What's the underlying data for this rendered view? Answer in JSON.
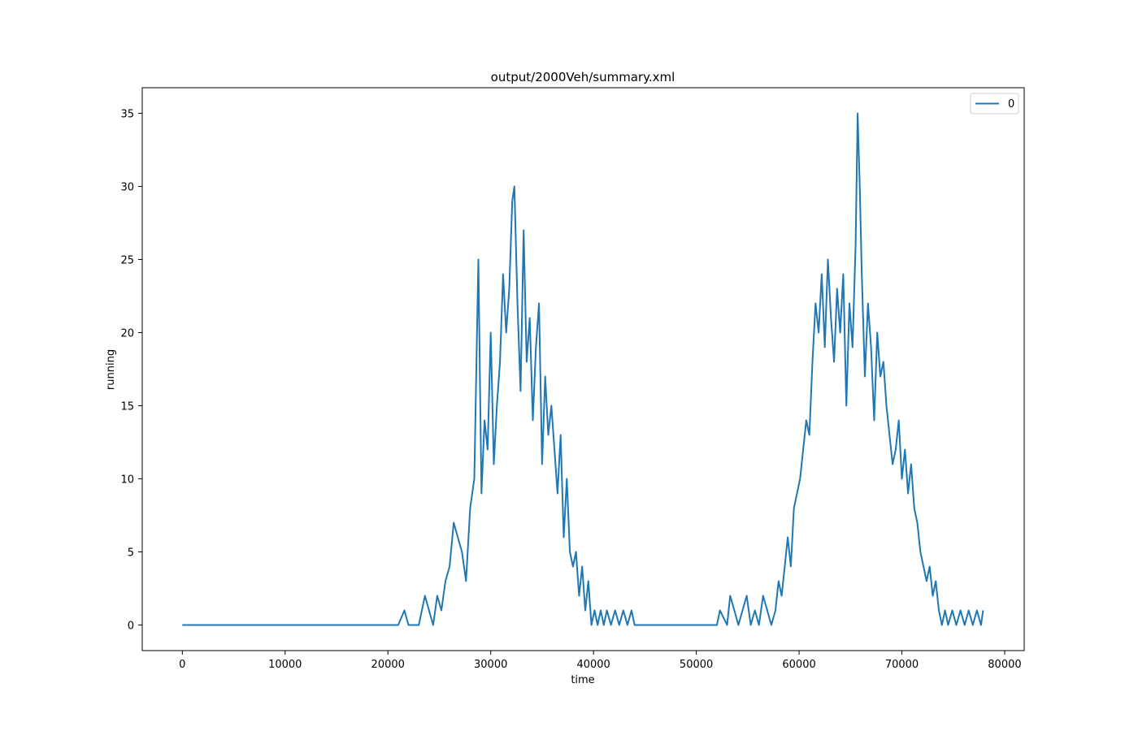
{
  "chart_data": {
    "type": "line",
    "title": "output/2000Veh/summary.xml",
    "xlabel": "time",
    "ylabel": "running",
    "xlim": [
      -3900,
      81900
    ],
    "ylim": [
      -1.75,
      36.75
    ],
    "xticks": [
      0,
      10000,
      20000,
      30000,
      40000,
      50000,
      60000,
      70000,
      80000
    ],
    "yticks": [
      0,
      5,
      10,
      15,
      20,
      25,
      30,
      35
    ],
    "grid": false,
    "legend_position": "top-right",
    "colors": {
      "series": "#1f77b4",
      "axes": "#000000",
      "background": "#ffffff"
    },
    "series": [
      {
        "name": "0",
        "x": [
          0,
          21000,
          21600,
          22000,
          23000,
          23300,
          23600,
          24000,
          24400,
          24800,
          25200,
          25600,
          26000,
          26400,
          26800,
          27200,
          27600,
          28000,
          28400,
          28800,
          29100,
          29400,
          29700,
          30000,
          30300,
          30600,
          30900,
          31200,
          31500,
          31800,
          32100,
          32300,
          32600,
          32900,
          33200,
          33500,
          33800,
          34100,
          34400,
          34700,
          35000,
          35300,
          35600,
          35900,
          36200,
          36500,
          36800,
          37100,
          37400,
          37700,
          38000,
          38300,
          38600,
          38900,
          39200,
          39500,
          39800,
          40100,
          40400,
          40700,
          41000,
          41300,
          41700,
          42100,
          42500,
          42900,
          43300,
          43700,
          44000,
          52000,
          52300,
          53000,
          53300,
          53700,
          54100,
          54500,
          54900,
          55300,
          55700,
          56100,
          56500,
          56900,
          57300,
          57700,
          58000,
          58300,
          58600,
          58900,
          59200,
          59500,
          59800,
          60100,
          60400,
          60700,
          61000,
          61300,
          61600,
          61900,
          62200,
          62500,
          62800,
          63100,
          63400,
          63700,
          64000,
          64300,
          64600,
          64900,
          65200,
          65500,
          65700,
          65900,
          66100,
          66400,
          66700,
          67000,
          67300,
          67600,
          67900,
          68200,
          68500,
          68800,
          69100,
          69400,
          69700,
          70000,
          70300,
          70600,
          70900,
          71200,
          71500,
          71800,
          72100,
          72400,
          72700,
          73000,
          73300,
          73600,
          73900,
          74200,
          74500,
          74900,
          75300,
          75700,
          76100,
          76500,
          76900,
          77300,
          77700,
          77900
        ],
        "values": [
          0,
          0,
          1,
          0,
          0,
          1,
          2,
          1,
          0,
          2,
          1,
          3,
          4,
          7,
          6,
          5,
          3,
          8,
          10,
          25,
          9,
          14,
          12,
          20,
          11,
          15,
          18,
          24,
          20,
          23,
          29,
          30,
          22,
          16,
          27,
          18,
          21,
          14,
          19,
          22,
          11,
          17,
          13,
          15,
          12,
          9,
          13,
          6,
          10,
          5,
          4,
          5,
          2,
          4,
          1,
          3,
          0,
          1,
          0,
          1,
          0,
          1,
          0,
          1,
          0,
          1,
          0,
          1,
          0,
          0,
          1,
          0,
          2,
          1,
          0,
          1,
          2,
          0,
          1,
          0,
          2,
          1,
          0,
          1,
          3,
          2,
          4,
          6,
          4,
          8,
          9,
          10,
          12,
          14,
          13,
          18,
          22,
          20,
          24,
          19,
          25,
          21,
          18,
          23,
          20,
          24,
          15,
          22,
          19,
          26,
          35,
          30,
          24,
          17,
          22,
          19,
          14,
          20,
          17,
          18,
          15,
          13,
          11,
          12,
          14,
          10,
          12,
          9,
          11,
          8,
          7,
          5,
          4,
          3,
          4,
          2,
          3,
          1,
          0,
          1,
          0,
          1,
          0,
          1,
          0,
          1,
          0,
          1,
          0,
          1
        ]
      }
    ]
  }
}
